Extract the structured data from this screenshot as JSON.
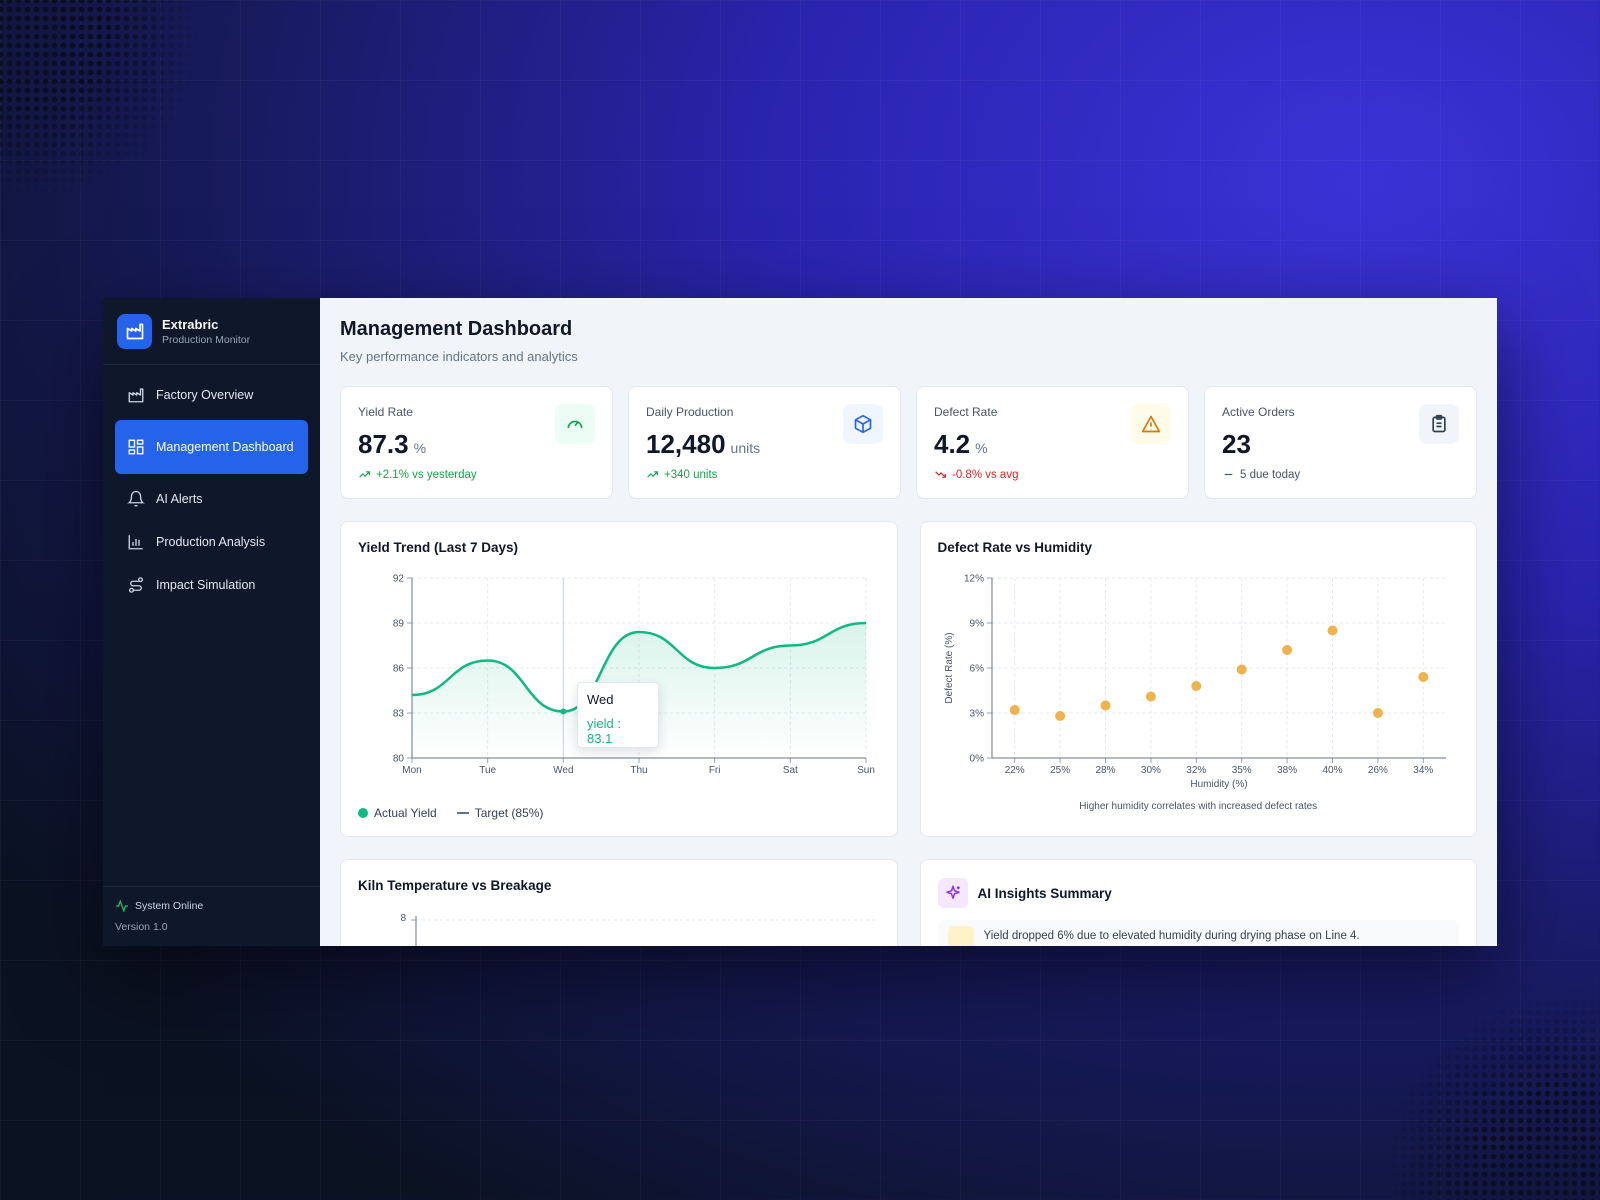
{
  "app": {
    "name": "Extrabric",
    "subtitle": "Production Monitor"
  },
  "nav": [
    {
      "label": "Factory Overview",
      "icon": "factory-icon"
    },
    {
      "label": "Management Dashboard",
      "icon": "dashboard-icon",
      "active": true
    },
    {
      "label": "AI Alerts",
      "icon": "bell-icon"
    },
    {
      "label": "Production Analysis",
      "icon": "bar-chart-icon"
    },
    {
      "label": "Impact Simulation",
      "icon": "route-icon"
    }
  ],
  "footer": {
    "status": "System Online",
    "version": "Version 1.0"
  },
  "page": {
    "title": "Management Dashboard",
    "subtitle": "Key performance indicators and analytics"
  },
  "kpis": [
    {
      "label": "Yield Rate",
      "value": "87.3",
      "unit": "%",
      "delta": "+2.1% vs yesterday",
      "trend": "up",
      "icon": "gauge-icon",
      "color": "#16a34a",
      "bg": "#ecfdf5"
    },
    {
      "label": "Daily Production",
      "value": "12,480",
      "unit": "units",
      "delta": "+340 units",
      "trend": "up",
      "icon": "box-icon",
      "color": "#16a34a",
      "bg": "#eff6ff"
    },
    {
      "label": "Defect Rate",
      "value": "4.2",
      "unit": "%",
      "delta": "-0.8% vs avg",
      "trend": "down",
      "icon": "warning-icon",
      "color": "#dc2626",
      "bg": "#fefce8"
    },
    {
      "label": "Active Orders",
      "value": "23",
      "unit": "",
      "delta": "5 due today",
      "trend": "flat",
      "icon": "clipboard-icon",
      "color": "#475569",
      "bg": "#f1f5f9"
    }
  ],
  "yield_chart": {
    "title": "Yield Trend (Last 7 Days)",
    "legend": {
      "actual": "Actual Yield",
      "target": "Target (85%)"
    },
    "tooltip": {
      "label": "Wed",
      "value_text": "yield : 83.1"
    },
    "accent": "#10b981"
  },
  "defect_chart": {
    "title": "Defect Rate vs Humidity",
    "caption": "Higher humidity correlates with increased defect rates",
    "color": "#f0b14f"
  },
  "kiln_card": {
    "title": "Kiln Temperature vs Breakage",
    "first_tick": "8"
  },
  "insights": {
    "title": "AI Insights Summary",
    "items": [
      "Yield dropped 6% due to elevated humidity during drying phase on Line 4."
    ]
  },
  "chart_data": [
    {
      "type": "line",
      "title": "Yield Trend (Last 7 Days)",
      "categories": [
        "Mon",
        "Tue",
        "Wed",
        "Thu",
        "Fri",
        "Sat",
        "Sun"
      ],
      "series": [
        {
          "name": "Actual Yield",
          "values": [
            84.2,
            86.5,
            83.1,
            88.4,
            86.0,
            87.5,
            89.0
          ]
        }
      ],
      "ylim": [
        80,
        92
      ],
      "yticks": [
        80,
        83,
        86,
        89,
        92
      ],
      "grid": true,
      "legend": "bottom-left"
    },
    {
      "type": "scatter",
      "title": "Defect Rate vs Humidity",
      "xlabel": "Humidity (%)",
      "ylabel": "Defect Rate (%)",
      "categories": [
        "22%",
        "25%",
        "28%",
        "30%",
        "32%",
        "35%",
        "38%",
        "40%",
        "26%",
        "34%"
      ],
      "values": [
        3.2,
        2.8,
        3.5,
        4.1,
        4.8,
        5.9,
        7.2,
        8.5,
        3.0,
        5.4
      ],
      "ylim": [
        0,
        12
      ],
      "yticks": [
        "0%",
        "3%",
        "6%",
        "9%",
        "12%"
      ],
      "grid": true
    }
  ]
}
